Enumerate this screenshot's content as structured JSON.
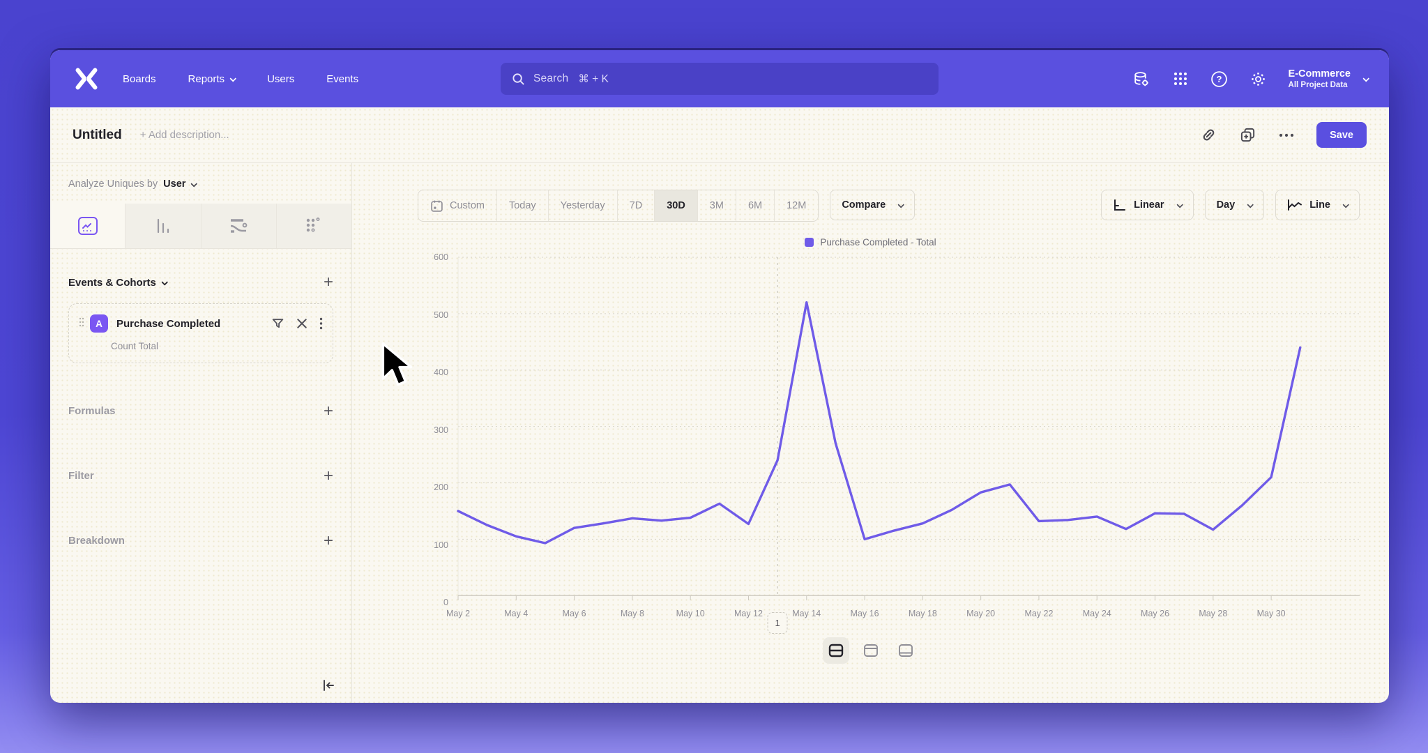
{
  "nav": {
    "items": [
      {
        "label": "Boards",
        "chevron": false
      },
      {
        "label": "Reports",
        "chevron": true
      },
      {
        "label": "Users",
        "chevron": false
      },
      {
        "label": "Events",
        "chevron": false
      }
    ],
    "search": {
      "label": "Search",
      "shortcut": "⌘ + K"
    },
    "icons": [
      "data-management-icon",
      "apps-grid-icon",
      "help-icon",
      "settings-gear-icon"
    ],
    "project": {
      "name": "E-Commerce",
      "scope": "All Project Data"
    }
  },
  "header": {
    "title": "Untitled",
    "description_placeholder": "+ Add description...",
    "icons": [
      "link-icon",
      "duplicate-icon",
      "more-ellipsis-icon"
    ],
    "save_label": "Save"
  },
  "sidebar": {
    "analyze_label": "Analyze Uniques by",
    "analyze_value": "User",
    "tabs": [
      "insights-line-tab",
      "bar-chart-tab",
      "flows-tab",
      "retention-dots-tab"
    ],
    "events_title": "Events & Cohorts",
    "event": {
      "badge": "A",
      "name": "Purchase Completed",
      "metric": "Count Total"
    },
    "extra_sections": [
      {
        "label": "Formulas"
      },
      {
        "label": "Filter"
      },
      {
        "label": "Breakdown"
      }
    ]
  },
  "toolbar": {
    "ranges": [
      {
        "label": "Custom",
        "icon": "calendar",
        "selected": false
      },
      {
        "label": "Today",
        "selected": false
      },
      {
        "label": "Yesterday",
        "selected": false
      },
      {
        "label": "7D",
        "selected": false
      },
      {
        "label": "30D",
        "selected": true
      },
      {
        "label": "3M",
        "selected": false
      },
      {
        "label": "6M",
        "selected": false
      },
      {
        "label": "12M",
        "selected": false
      }
    ],
    "compare_label": "Compare",
    "scale_label": "Linear",
    "interval_label": "Day",
    "chart_type_label": "Line"
  },
  "chart_data": {
    "type": "line",
    "legend": [
      {
        "name": "Purchase Completed - Total",
        "color": "#6f5be8"
      }
    ],
    "x": [
      "May 2",
      "May 3",
      "May 4",
      "May 5",
      "May 6",
      "May 7",
      "May 8",
      "May 9",
      "May 10",
      "May 11",
      "May 12",
      "May 13",
      "May 14",
      "May 15",
      "May 16",
      "May 17",
      "May 18",
      "May 19",
      "May 20",
      "May 21",
      "May 22",
      "May 23",
      "May 24",
      "May 25",
      "May 26",
      "May 27",
      "May 28",
      "May 29",
      "May 30",
      "May 31"
    ],
    "values": [
      150,
      125,
      105,
      93,
      120,
      128,
      137,
      133,
      138,
      163,
      127,
      240,
      520,
      270,
      100,
      115,
      128,
      152,
      183,
      197,
      132,
      134,
      140,
      118,
      146,
      145,
      117,
      160,
      210,
      440
    ],
    "x_tick_every": 2,
    "ylim": [
      0,
      600
    ],
    "y_ticks": [
      0,
      100,
      200,
      300,
      400,
      500,
      600
    ],
    "grid": "horizontal-dotted",
    "legend_position": "top-center",
    "line_color": "#6f5be8",
    "annotation": {
      "index": 11,
      "label": "1"
    }
  },
  "footer": {
    "layout_icons": [
      "split-horizontal-icon",
      "panel-top-icon",
      "panel-bottom-icon"
    ],
    "selected_layout": 0
  }
}
